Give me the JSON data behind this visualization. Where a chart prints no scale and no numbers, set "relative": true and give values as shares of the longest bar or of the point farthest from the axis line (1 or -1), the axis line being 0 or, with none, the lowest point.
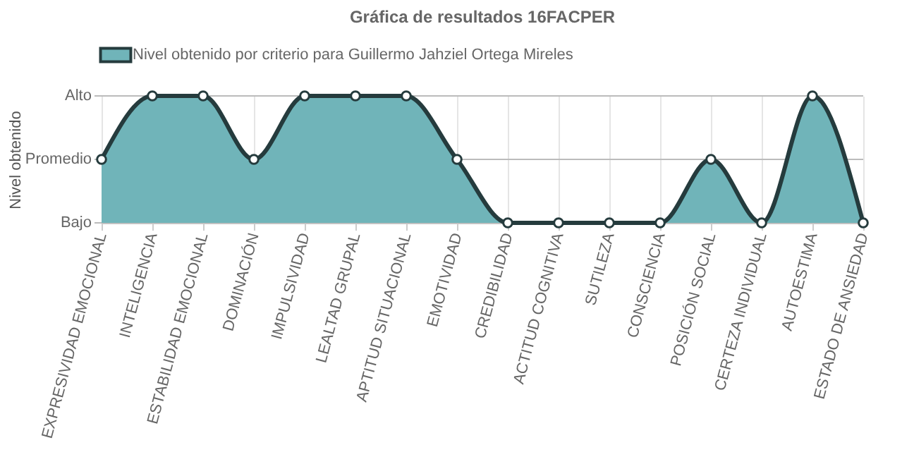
{
  "chart_data": {
    "type": "area",
    "title": "Gráfica de resultados 16FACPER",
    "ylabel": "Nivel obtenido",
    "categories": [
      "EXPRESIVIDAD EMOCIONAL",
      "INTELIGENCIA",
      "ESTABILIDAD EMOCIONAL",
      "DOMINACIÓN",
      "IMPULSIVIDAD",
      "LEALTAD GRUPAL",
      "APTITUD SITUACIONAL",
      "EMOTIVIDAD",
      "CREDIBILIDAD",
      "ACTITUD COGNITIVA",
      "SUTILEZA",
      "CONSCIENCIA",
      "POSICIÓN SOCIAL",
      "CERTEZA INDIVIDUAL",
      "AUTOESTIMA",
      "ESTADO DE ANSIEDAD"
    ],
    "series": [
      {
        "name": "Nivel obtenido por criterio para Guillermo Jahziel Ortega Mireles",
        "color": "#70b4b9",
        "values": [
          0.5,
          1,
          1,
          0.5,
          1,
          1,
          1,
          0.5,
          0,
          0,
          0,
          0,
          0.5,
          0,
          1,
          0
        ]
      }
    ],
    "relative": true,
    "ref_lines": [
      {
        "axis": "y",
        "value": 0,
        "label": "Bajo"
      },
      {
        "axis": "y",
        "value": 0.5,
        "label": "Promedio"
      },
      {
        "axis": "y",
        "value": 1,
        "label": "Alto"
      }
    ],
    "grid": "x",
    "legend": "top",
    "marker": "circle",
    "line_style": "solid"
  }
}
